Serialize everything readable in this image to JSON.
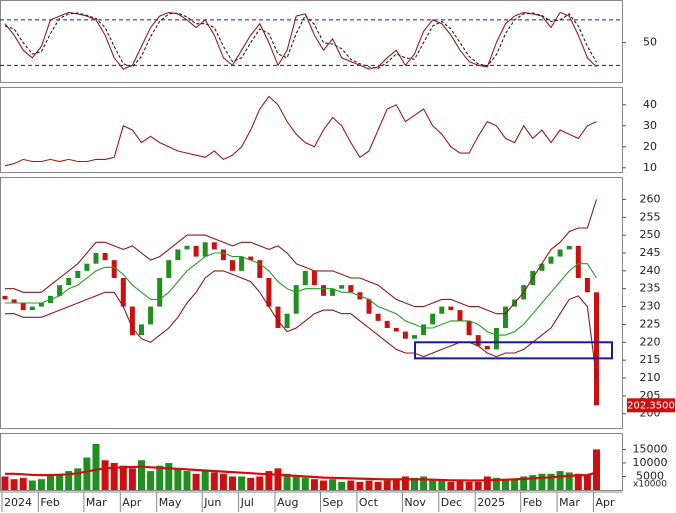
{
  "chart_data": [
    {
      "type": "line",
      "ylim": [
        -2,
        105
      ],
      "yticks": [
        50
      ],
      "levels": [
        20,
        80
      ],
      "series": [
        {
          "color": "#9b1c1c",
          "values": [
            75,
            60,
            40,
            30,
            45,
            80,
            85,
            90,
            88,
            85,
            80,
            60,
            30,
            15,
            20,
            45,
            70,
            85,
            90,
            88,
            80,
            70,
            80,
            60,
            30,
            20,
            40,
            60,
            75,
            50,
            20,
            40,
            85,
            88,
            60,
            40,
            55,
            30,
            25,
            20,
            15,
            18,
            30,
            40,
            20,
            35,
            65,
            80,
            75,
            60,
            40,
            25,
            20,
            18,
            50,
            75,
            85,
            90,
            88,
            85,
            70,
            90,
            85,
            60,
            30,
            18
          ]
        },
        {
          "color": "#222222",
          "dashed": true,
          "values": [
            72,
            68,
            50,
            35,
            38,
            62,
            82,
            88,
            89,
            86,
            82,
            70,
            45,
            22,
            18,
            32,
            58,
            78,
            88,
            89,
            84,
            75,
            75,
            70,
            45,
            25,
            30,
            50,
            68,
            62,
            35,
            30,
            62,
            86,
            74,
            50,
            48,
            42,
            28,
            22,
            18,
            16,
            24,
            35,
            30,
            28,
            50,
            72,
            78,
            68,
            50,
            32,
            22,
            19,
            34,
            62,
            80,
            88,
            89,
            86,
            78,
            80,
            88,
            72,
            45,
            24
          ]
        }
      ]
    },
    {
      "type": "line",
      "ylim": [
        8,
        48
      ],
      "yticks": [
        10,
        20,
        30,
        40
      ],
      "series": [
        {
          "color": "#9b1c1c",
          "values": [
            11,
            12,
            14,
            13,
            13,
            14,
            13,
            14,
            13,
            13,
            14,
            14,
            15,
            30,
            28,
            22,
            25,
            22,
            20,
            18,
            17,
            16,
            15,
            18,
            14,
            16,
            20,
            28,
            38,
            44,
            40,
            32,
            26,
            22,
            20,
            28,
            34,
            30,
            22,
            15,
            18,
            28,
            38,
            40,
            32,
            35,
            38,
            30,
            26,
            20,
            17,
            17,
            25,
            32,
            30,
            24,
            22,
            30,
            24,
            28,
            22,
            28,
            26,
            24,
            30,
            32
          ]
        }
      ]
    },
    {
      "type": "candlestick",
      "ylim": [
        196,
        266
      ],
      "yticks": [
        200,
        205,
        210,
        215,
        220,
        225,
        230,
        235,
        240,
        245,
        250,
        255,
        260
      ],
      "up_color": "#1f8f1f",
      "down_color": "#cc1010",
      "open": [
        233,
        232,
        231,
        229,
        230,
        231,
        233,
        236,
        238,
        240,
        242,
        245,
        243,
        238,
        230,
        222,
        225,
        230,
        238,
        243,
        246,
        247,
        244,
        248,
        246,
        243,
        240,
        244,
        243,
        238,
        230,
        224,
        228,
        236,
        240,
        236,
        233,
        235,
        236,
        234,
        232,
        228,
        226,
        224,
        223,
        221,
        222,
        225,
        228,
        230,
        229,
        226,
        222,
        219,
        218,
        224,
        230,
        232,
        236,
        240,
        242,
        244,
        246,
        247,
        238,
        234
      ],
      "close": [
        232,
        231,
        229,
        230,
        231,
        233,
        236,
        238,
        240,
        242,
        245,
        243,
        238,
        230,
        222,
        225,
        230,
        238,
        243,
        246,
        247,
        244,
        248,
        246,
        243,
        240,
        244,
        243,
        238,
        230,
        224,
        228,
        236,
        240,
        236,
        233,
        235,
        236,
        234,
        232,
        228,
        226,
        224,
        223,
        221,
        222,
        225,
        228,
        230,
        229,
        226,
        222,
        219,
        218,
        224,
        230,
        232,
        236,
        240,
        242,
        244,
        246,
        247,
        238,
        234,
        202.35
      ],
      "series": [
        {
          "color": "#8b1a1a",
          "values": [
            235,
            235,
            234,
            234,
            234,
            236,
            238,
            240,
            242,
            245,
            248,
            248,
            247,
            246,
            247,
            245,
            243,
            244,
            246,
            248,
            250,
            250,
            250,
            249,
            248,
            247,
            248,
            248,
            247,
            246,
            247,
            245,
            242,
            241,
            240,
            240,
            240,
            239,
            238,
            238,
            237,
            236,
            234,
            232,
            231,
            230,
            230,
            231,
            232,
            232,
            231,
            230,
            230,
            229,
            228,
            228,
            231,
            234,
            238,
            242,
            246,
            248,
            251,
            252,
            252,
            260
          ]
        },
        {
          "color": "#2a9a2a",
          "values": [
            231,
            231,
            231,
            231,
            231,
            232,
            233,
            235,
            236,
            238,
            240,
            241,
            241,
            239,
            236,
            234,
            232,
            232,
            234,
            237,
            240,
            242,
            244,
            245,
            245,
            244,
            244,
            243,
            242,
            240,
            237,
            235,
            234,
            235,
            235,
            235,
            235,
            234,
            234,
            233,
            232,
            230,
            229,
            228,
            226,
            225,
            224,
            224,
            225,
            226,
            226,
            226,
            225,
            223,
            222,
            222,
            223,
            225,
            228,
            231,
            234,
            237,
            240,
            242,
            242,
            238
          ]
        },
        {
          "color": "#8b1a1a",
          "values": [
            228,
            228,
            227,
            227,
            227,
            228,
            229,
            230,
            231,
            232,
            233,
            234,
            234,
            230,
            224,
            221,
            220,
            222,
            224,
            227,
            231,
            234,
            238,
            240,
            240,
            239,
            238,
            237,
            234,
            230,
            226,
            223,
            224,
            226,
            228,
            229,
            229,
            228,
            228,
            226,
            224,
            222,
            220,
            218,
            217,
            217,
            216,
            217,
            218,
            219,
            220,
            220,
            219,
            217,
            216,
            217,
            217,
            218,
            220,
            222,
            224,
            228,
            232,
            233,
            230,
            210
          ]
        }
      ],
      "zone": {
        "low": 215.5,
        "high": 220,
        "color": "#1a1aa0"
      },
      "last_price": {
        "value": 202.35,
        "label": "202.3500"
      }
    },
    {
      "type": "bar",
      "ylim": [
        0,
        20700
      ],
      "yticks": [
        5000,
        10000,
        15000
      ],
      "unit": "x10000",
      "categories": [
        "2024",
        null,
        null,
        null,
        "Feb",
        null,
        null,
        null,
        null,
        "Mar",
        null,
        null,
        null,
        "Apr",
        null,
        null,
        null,
        "May",
        null,
        null,
        null,
        null,
        "Jun",
        null,
        null,
        null,
        "Jul",
        null,
        null,
        null,
        "Aug",
        null,
        null,
        null,
        null,
        "Sep",
        null,
        null,
        null,
        "Oct",
        null,
        null,
        null,
        null,
        "Nov",
        null,
        null,
        null,
        "Dec",
        null,
        null,
        null,
        "2025",
        null,
        null,
        null,
        null,
        "Feb",
        null,
        null,
        null,
        "Mar",
        null,
        null,
        null,
        "Apr"
      ],
      "values": [
        5000,
        4000,
        4500,
        3500,
        4000,
        5500,
        6000,
        7000,
        8000,
        12000,
        17000,
        11000,
        10000,
        9000,
        8000,
        11000,
        7000,
        9000,
        10000,
        8000,
        7000,
        6000,
        7000,
        6500,
        6000,
        5000,
        5000,
        4500,
        5000,
        7000,
        8000,
        6000,
        5000,
        4500,
        4000,
        3500,
        4000,
        3000,
        3500,
        3000,
        3500,
        3000,
        3500,
        4000,
        5000,
        4500,
        5000,
        3500,
        3500,
        3000,
        3500,
        3000,
        3000,
        5000,
        4500,
        4000,
        4000,
        5000,
        5500,
        6000,
        6000,
        7000,
        6500,
        6000,
        5500,
        15000
      ],
      "series": [
        {
          "color": "#cc1010",
          "values": [
            6000,
            6000,
            5800,
            5600,
            5500,
            5500,
            5600,
            5800,
            6200,
            6800,
            7500,
            8000,
            8200,
            8400,
            8500,
            8600,
            8400,
            8200,
            8000,
            7800,
            7600,
            7400,
            7200,
            7000,
            6800,
            6600,
            6400,
            6200,
            6000,
            5800,
            5600,
            5400,
            5200,
            5000,
            4800,
            4600,
            4500,
            4400,
            4300,
            4200,
            4100,
            4000,
            3900,
            3900,
            3900,
            3900,
            3900,
            3800,
            3700,
            3600,
            3600,
            3500,
            3500,
            3600,
            3700,
            3800,
            3900,
            4100,
            4300,
            4500,
            4700,
            5000,
            5200,
            5400,
            5500,
            6500
          ]
        }
      ]
    }
  ]
}
